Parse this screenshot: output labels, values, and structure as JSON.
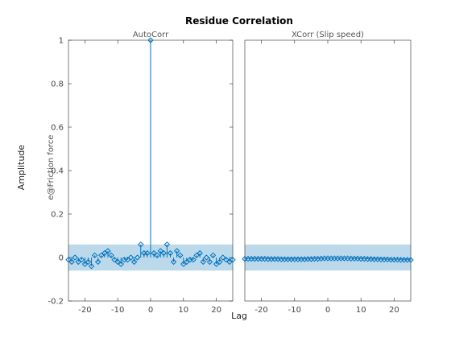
{
  "figure": {
    "title": "Residue Correlation",
    "ylabel_outer": "Amplitude",
    "xlabel": "Lag",
    "colors": {
      "line": "#0072BD",
      "band": "#BCD9EC",
      "axes": "#262626"
    }
  },
  "chart_data": [
    {
      "type": "stem",
      "subtitle": "AutoCorr",
      "ylabel": "e@Friction force",
      "xlim": [
        -25,
        25
      ],
      "ylim": [
        -0.2,
        1
      ],
      "xticks": [
        -20,
        -10,
        0,
        10,
        20
      ],
      "yticks": [
        -0.2,
        0,
        0.2,
        0.4,
        0.6,
        0.8,
        1
      ],
      "ytick_labels": [
        "-0.2",
        "0",
        "0.2",
        "0.4",
        "0.6",
        "0.8",
        "1"
      ],
      "confidence_band": [
        -0.06,
        0.06
      ],
      "lags": [
        -25,
        -24,
        -23,
        -22,
        -21,
        -20,
        -19,
        -18,
        -17,
        -16,
        -15,
        -14,
        -13,
        -12,
        -11,
        -10,
        -9,
        -8,
        -7,
        -6,
        -5,
        -4,
        -3,
        -2,
        -1,
        0,
        1,
        2,
        3,
        4,
        5,
        6,
        7,
        8,
        9,
        10,
        11,
        12,
        13,
        14,
        15,
        16,
        17,
        18,
        19,
        20,
        21,
        22,
        23,
        24,
        25
      ],
      "values": [
        -0.01,
        -0.02,
        0.0,
        -0.02,
        -0.01,
        -0.03,
        -0.02,
        -0.04,
        0.01,
        -0.02,
        0.01,
        0.02,
        0.03,
        0.01,
        -0.01,
        -0.02,
        -0.03,
        -0.01,
        -0.01,
        0.0,
        -0.02,
        0.0,
        0.06,
        0.02,
        0.02,
        1.0,
        0.02,
        0.01,
        0.03,
        0.02,
        0.06,
        0.02,
        -0.02,
        0.03,
        0.01,
        -0.03,
        -0.02,
        -0.01,
        -0.01,
        0.01,
        0.02,
        -0.02,
        0.0,
        -0.02,
        0.01,
        -0.03,
        -0.02,
        0.0,
        -0.01,
        -0.02,
        -0.01
      ]
    },
    {
      "type": "stem",
      "subtitle": "XCorr (Slip speed)",
      "xlim": [
        -25,
        25
      ],
      "ylim": [
        -0.2,
        1
      ],
      "xticks": [
        -20,
        -10,
        0,
        10,
        20
      ],
      "confidence_band": [
        -0.06,
        0.06
      ],
      "lags": [
        -25,
        -24,
        -23,
        -22,
        -21,
        -20,
        -19,
        -18,
        -17,
        -16,
        -15,
        -14,
        -13,
        -12,
        -11,
        -10,
        -9,
        -8,
        -7,
        -6,
        -5,
        -4,
        -3,
        -2,
        -1,
        0,
        1,
        2,
        3,
        4,
        5,
        6,
        7,
        8,
        9,
        10,
        11,
        12,
        13,
        14,
        15,
        16,
        17,
        18,
        19,
        20,
        21,
        22,
        23,
        24,
        25
      ],
      "values": [
        -0.006,
        -0.006,
        -0.006,
        -0.006,
        -0.006,
        -0.006,
        -0.006,
        -0.007,
        -0.007,
        -0.007,
        -0.007,
        -0.008,
        -0.008,
        -0.008,
        -0.008,
        -0.008,
        -0.008,
        -0.008,
        -0.008,
        -0.007,
        -0.007,
        -0.006,
        -0.006,
        -0.005,
        -0.004,
        -0.004,
        -0.004,
        -0.004,
        -0.004,
        -0.004,
        -0.004,
        -0.004,
        -0.005,
        -0.005,
        -0.005,
        -0.006,
        -0.006,
        -0.007,
        -0.007,
        -0.008,
        -0.008,
        -0.009,
        -0.009,
        -0.009,
        -0.01,
        -0.01,
        -0.01,
        -0.011,
        -0.011,
        -0.011,
        -0.011
      ]
    }
  ]
}
